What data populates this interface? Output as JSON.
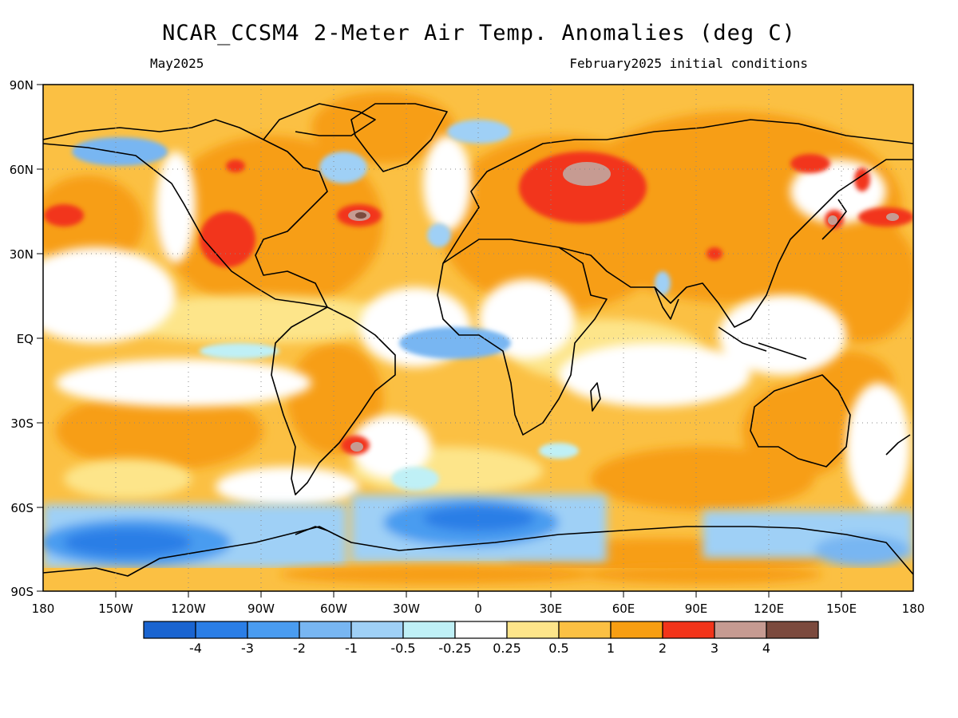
{
  "header": {
    "title": "NCAR_CCSM4 2-Meter Air Temp. Anomalies (deg C)",
    "valid_month": "May2025",
    "init_label": "February2025 initial conditions"
  },
  "map": {
    "projection": "equirectangular",
    "lat_labels": [
      "90N",
      "60N",
      "30N",
      "EQ",
      "30S",
      "60S",
      "90S"
    ],
    "lon_labels": [
      "180",
      "150W",
      "120W",
      "90W",
      "60W",
      "30W",
      "0",
      "30E",
      "60E",
      "90E",
      "120E",
      "150E",
      "180"
    ]
  },
  "legend": {
    "colors": [
      "#1a64d0",
      "#2b7ee6",
      "#4a9cf0",
      "#78b6f2",
      "#9fd0f6",
      "#bff0f6",
      "#ffffff",
      "#fde58a",
      "#fbc043",
      "#f79e12",
      "#f2341a",
      "#c69b92",
      "#7b4a3e"
    ],
    "labels": [
      "-4",
      "-3",
      "-2",
      "-1",
      "-0.5",
      "-0.25",
      "0.25",
      "0.5",
      "1",
      "2",
      "3",
      "4"
    ]
  },
  "regions": [
    {
      "name": "north-atlantic-warm",
      "color": "#f79e12"
    },
    {
      "name": "southern-ocean-cold",
      "color": "#2b7ee6"
    },
    {
      "name": "siberia-hot",
      "color": "#f2341a"
    }
  ]
}
